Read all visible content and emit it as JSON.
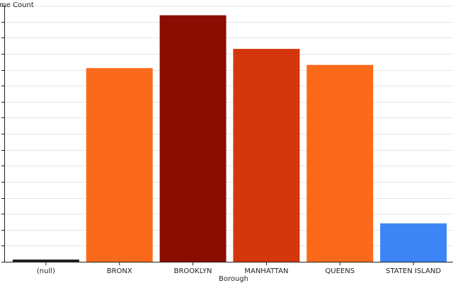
{
  "chart_data": {
    "type": "bar",
    "title": "",
    "xlabel": "Borough",
    "ylabel": "Crime Count",
    "ylabel_visible": "me Count",
    "categories": [
      "(null)",
      "BRONX",
      "BROOKLYN",
      "MANHATTAN",
      "QUEENS",
      "STATEN ISLAND"
    ],
    "values": [
      0.7,
      60.5,
      77.0,
      66.5,
      61.5,
      12.0
    ],
    "colors": [
      "#1f1f1f",
      "#fb6a1a",
      "#8b0c00",
      "#d4360e",
      "#fb6a1a",
      "#3d85f5"
    ],
    "ylim": [
      0,
      80
    ],
    "y_tick_count": 17,
    "y_tick_labels_visible": false,
    "grid": true,
    "legend": "none"
  }
}
